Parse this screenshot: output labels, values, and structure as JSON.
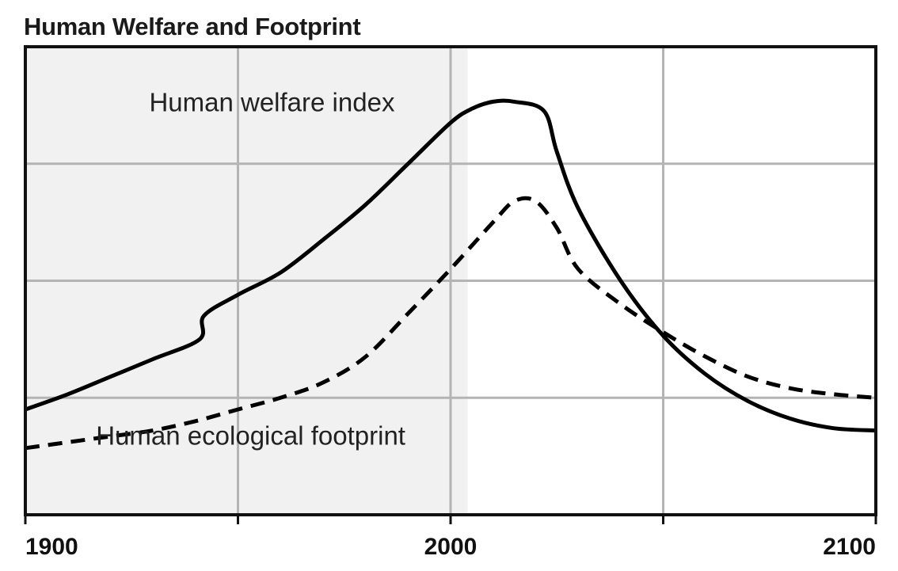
{
  "chart_data": {
    "type": "line",
    "title": "Human Welfare and Footprint",
    "xlabel": "",
    "ylabel": "",
    "xlim": [
      1900,
      2100
    ],
    "ylim": [
      0,
      4
    ],
    "x_ticks": [
      1900,
      1950,
      2000,
      2050,
      2100
    ],
    "x_tick_labels": [
      {
        "value": 1900,
        "label": "1900"
      },
      {
        "value": 2000,
        "label": "2000"
      },
      {
        "value": 2100,
        "label": "2100"
      }
    ],
    "y_grid": [
      1,
      2,
      3
    ],
    "shaded_region": {
      "from": 1900,
      "to": 2004
    },
    "series": [
      {
        "name": "Human welfare index",
        "style": "solid",
        "color": "#000000",
        "label_at": {
          "x": 1958,
          "y": 3.45
        },
        "points": [
          [
            1900,
            0.9
          ],
          [
            1910,
            1.03
          ],
          [
            1920,
            1.18
          ],
          [
            1930,
            1.33
          ],
          [
            1941,
            1.5
          ],
          [
            1942,
            1.7
          ],
          [
            1950,
            1.88
          ],
          [
            1960,
            2.07
          ],
          [
            1970,
            2.35
          ],
          [
            1980,
            2.65
          ],
          [
            1990,
            3.0
          ],
          [
            2000,
            3.35
          ],
          [
            2005,
            3.47
          ],
          [
            2010,
            3.53
          ],
          [
            2015,
            3.53
          ],
          [
            2022,
            3.45
          ],
          [
            2025,
            3.1
          ],
          [
            2030,
            2.62
          ],
          [
            2040,
            2.0
          ],
          [
            2050,
            1.53
          ],
          [
            2060,
            1.2
          ],
          [
            2070,
            0.97
          ],
          [
            2080,
            0.82
          ],
          [
            2090,
            0.74
          ],
          [
            2100,
            0.72
          ]
        ]
      },
      {
        "name": "Human ecological footprint",
        "style": "dashed",
        "color": "#000000",
        "label_at": {
          "x": 1953,
          "y": 0.6
        },
        "points": [
          [
            1900,
            0.57
          ],
          [
            1910,
            0.62
          ],
          [
            1920,
            0.67
          ],
          [
            1930,
            0.72
          ],
          [
            1940,
            0.8
          ],
          [
            1950,
            0.9
          ],
          [
            1960,
            1.0
          ],
          [
            1970,
            1.13
          ],
          [
            1980,
            1.35
          ],
          [
            1990,
            1.72
          ],
          [
            2000,
            2.1
          ],
          [
            2010,
            2.5
          ],
          [
            2015,
            2.68
          ],
          [
            2020,
            2.68
          ],
          [
            2025,
            2.45
          ],
          [
            2030,
            2.1
          ],
          [
            2040,
            1.8
          ],
          [
            2050,
            1.56
          ],
          [
            2060,
            1.35
          ],
          [
            2070,
            1.18
          ],
          [
            2080,
            1.08
          ],
          [
            2090,
            1.03
          ],
          [
            2100,
            1.0
          ]
        ]
      }
    ]
  }
}
